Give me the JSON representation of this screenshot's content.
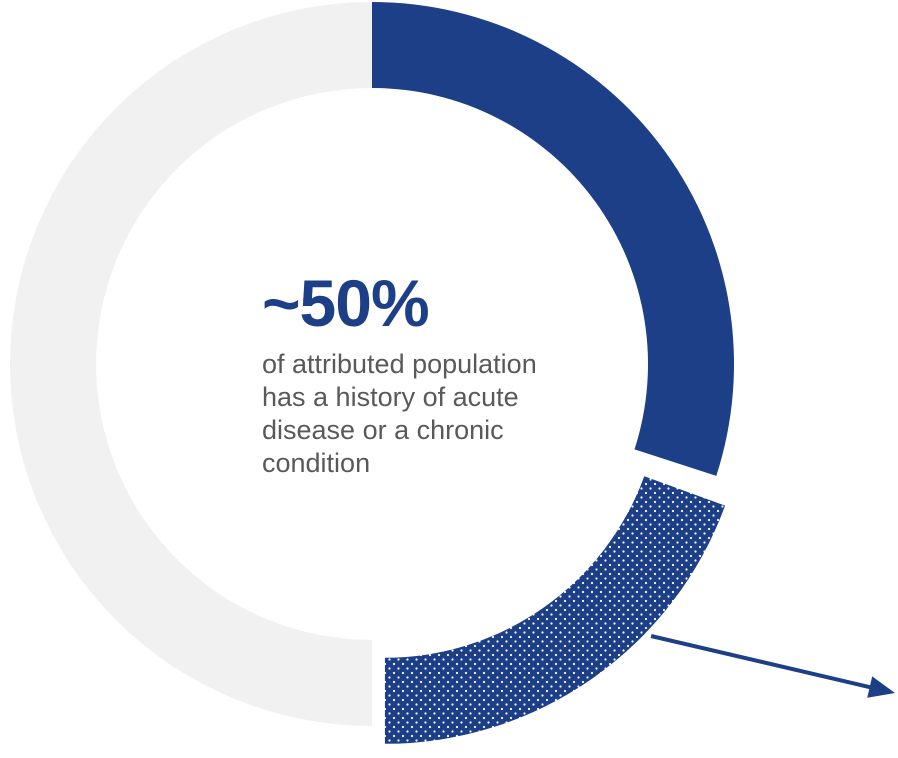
{
  "chart_data": {
    "type": "pie",
    "style": "donut",
    "segments": [
      {
        "share": 0.3,
        "color": "#1c3f87",
        "fill": "solid"
      },
      {
        "share": 0.2,
        "color": "#1c3f87",
        "fill": "dotted",
        "exploded": true
      },
      {
        "share": 0.5,
        "color": "#f1f1f1",
        "fill": "solid"
      }
    ],
    "annotations": [
      {
        "type": "arrow",
        "from_segment": 1,
        "direction": "bottom-right",
        "color": "#1c3f87"
      }
    ]
  },
  "center": {
    "value": "~50%",
    "caption_lines": [
      "of attributed population",
      "has a history of acute",
      "disease or a chronic",
      "condition"
    ]
  },
  "colors": {
    "accent": "#1c3f87",
    "track": "#f1f1f1",
    "caption_text": "#595959"
  }
}
